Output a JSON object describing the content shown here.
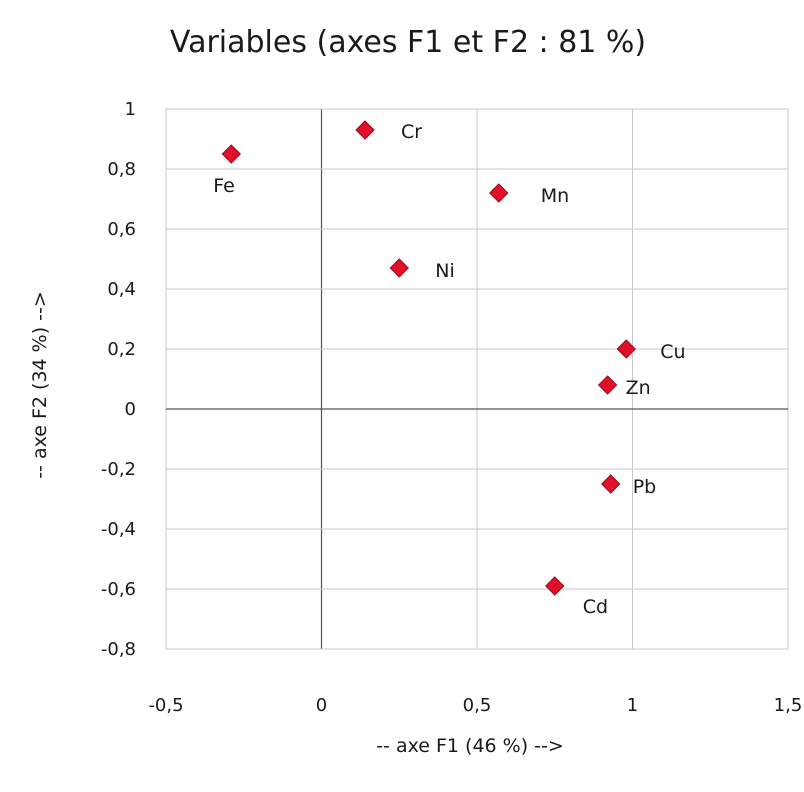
{
  "chart_data": {
    "type": "scatter",
    "title": "Variables (axes F1 et F2 : 81 %)",
    "xlabel": "-- axe F1 (46 %) -->",
    "ylabel": "-- axe F2 (34 %) -->",
    "xlim": [
      -0.5,
      1.5
    ],
    "ylim": [
      -0.8,
      1
    ],
    "x_ticks": [
      -0.5,
      0,
      0.5,
      1,
      1.5
    ],
    "y_ticks": [
      -0.8,
      -0.6,
      -0.4,
      -0.2,
      0,
      0.2,
      0.4,
      0.6,
      0.8,
      1
    ],
    "x_tick_labels": [
      "-0,5",
      "0",
      "0,5",
      "1",
      "1,5"
    ],
    "y_tick_labels": [
      "-0,8",
      "-0,6",
      "-0,4",
      "-0,2",
      "0",
      "0,2",
      "0,4",
      "0,6",
      "0,8",
      "1"
    ],
    "grid": true,
    "marker_color": "#e0102a",
    "points": [
      {
        "label": "Fe",
        "x": -0.29,
        "y": 0.85
      },
      {
        "label": "Cr",
        "x": 0.14,
        "y": 0.93
      },
      {
        "label": "Mn",
        "x": 0.57,
        "y": 0.72
      },
      {
        "label": "Ni",
        "x": 0.25,
        "y": 0.47
      },
      {
        "label": "Cu",
        "x": 0.98,
        "y": 0.2
      },
      {
        "label": "Zn",
        "x": 0.92,
        "y": 0.08
      },
      {
        "label": "Pb",
        "x": 0.93,
        "y": -0.25
      },
      {
        "label": "Cd",
        "x": 0.75,
        "y": -0.59
      }
    ]
  }
}
